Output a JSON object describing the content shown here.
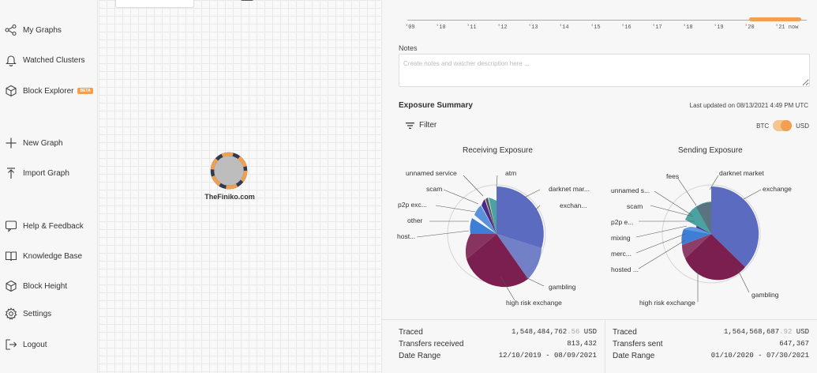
{
  "sidebar": {
    "items": [
      {
        "label": "My Graphs",
        "icon": "graph-icon"
      },
      {
        "label": "Watched Clusters",
        "icon": "bell-icon"
      },
      {
        "label": "Block Explorer",
        "icon": "cube-icon",
        "badge": "BETA"
      },
      {
        "label": "New Graph",
        "icon": "plus-icon"
      },
      {
        "label": "Import Graph",
        "icon": "upload-icon"
      },
      {
        "label": "Help & Feedback",
        "icon": "chat-icon"
      },
      {
        "label": "Knowledge Base",
        "icon": "book-icon"
      },
      {
        "label": "Block Height",
        "icon": "cube-icon"
      },
      {
        "label": "Settings",
        "icon": "gear-icon"
      },
      {
        "label": "Logout",
        "icon": "logout-icon"
      }
    ]
  },
  "graph": {
    "node_label": "TheFiniko.com",
    "tools": [
      "hexagon-icon",
      "target-icon",
      "undo-icon",
      "redo-icon",
      "sort-icon",
      "histogram-icon"
    ]
  },
  "timeline": {
    "years": [
      "'09",
      "'10",
      "'11",
      "'12",
      "'13",
      "'14",
      "'15",
      "'16",
      "'17",
      "'18",
      "'19",
      "'20",
      "'21 now"
    ],
    "accent": "#f0a050"
  },
  "notes": {
    "label": "Notes",
    "placeholder": "Create notes and watcher description here ..."
  },
  "exposure": {
    "title": "Exposure Summary",
    "updated": "Last updated on 08/13/2021 4:49 PM UTC",
    "filter_label": "Filter",
    "currency_left": "BTC",
    "currency_right": "USD",
    "receiving_title": "Receiving Exposure",
    "sending_title": "Sending Exposure"
  },
  "chart_data": [
    {
      "type": "pie",
      "title": "Receiving Exposure",
      "labels": [
        "unnamed service",
        "atm",
        "darknet mar...",
        "exchan...",
        "scam",
        "p2p exc...",
        "other",
        "host...",
        "gambling",
        "high risk exchange"
      ],
      "colors": {
        "exchange": "#5b6bbf",
        "gambling": "#7a1f4f",
        "hosted": "#3d7fd6",
        "other": "#4b2a8c",
        "p2p": "#4aa3a0",
        "darknet": "#1e3a8a"
      }
    },
    {
      "type": "pie",
      "title": "Sending Exposure",
      "labels": [
        "fees",
        "darknet market",
        "exchange",
        "unnamed s...",
        "scam",
        "p2p e...",
        "mixing",
        "merc...",
        "hosted ...",
        "high risk exchange",
        "gambling"
      ],
      "colors": {
        "exchange": "#5b6bbf",
        "gambling": "#7a1f4f",
        "hosted": "#3d7fd6",
        "other": "#4b2a8c",
        "p2p": "#4aa3a0",
        "darknet": "#5b7380"
      }
    }
  ],
  "stats": {
    "received": {
      "traced_label": "Traced",
      "traced_value": "1,548,484,762",
      "traced_cents": ".56",
      "traced_unit": "USD",
      "transfers_label": "Transfers received",
      "transfers_value": "813,432",
      "range_label": "Date Range",
      "range_value": "12/10/2019 - 08/09/2021"
    },
    "sent": {
      "traced_label": "Traced",
      "traced_value": "1,564,568,687",
      "traced_cents": ".92",
      "traced_unit": "USD",
      "transfers_label": "Transfers sent",
      "transfers_value": "647,367",
      "range_label": "Date Range",
      "range_value": "01/10/2020 - 07/30/2021"
    }
  }
}
